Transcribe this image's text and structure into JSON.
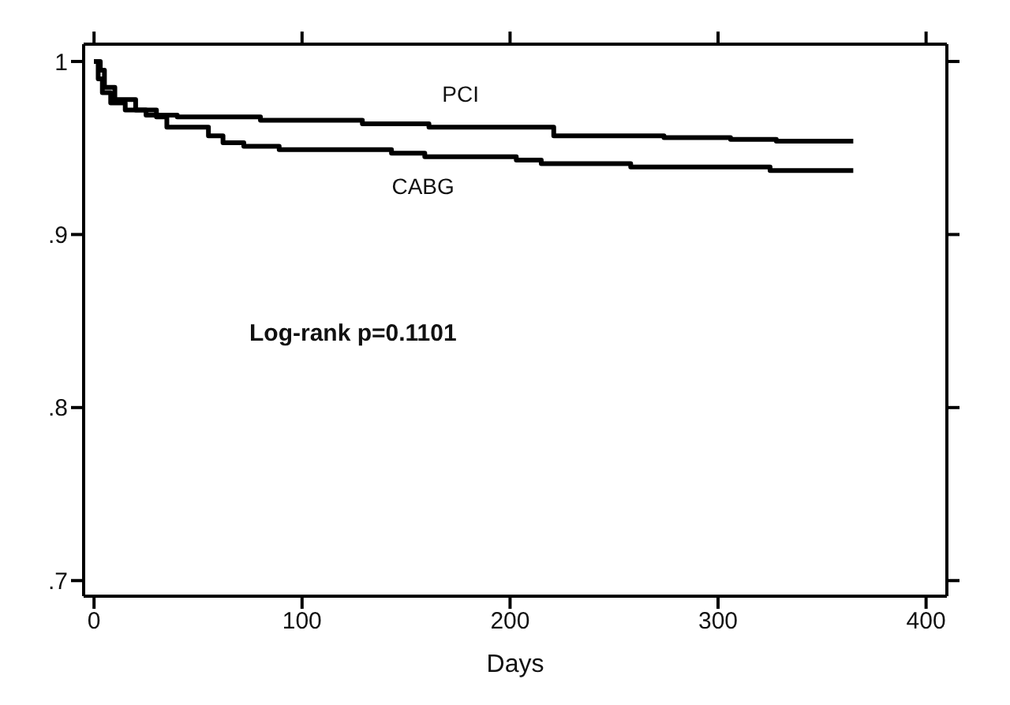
{
  "chart_data": {
    "type": "step",
    "xlabel": "Days",
    "annotations": [
      "Log-rank p=0.1101"
    ],
    "series": [
      {
        "name": "PCI",
        "color": "#000000",
        "x": [
          0,
          2,
          4,
          8,
          15,
          25,
          40,
          80,
          129,
          161,
          221,
          274,
          306,
          328,
          365
        ],
        "values": [
          1,
          0.99,
          0.982,
          0.976,
          0.972,
          0.969,
          0.968,
          0.966,
          0.964,
          0.962,
          0.957,
          0.956,
          0.955,
          0.954,
          0.954
        ]
      },
      {
        "name": "CABG",
        "color": "#000000",
        "x": [
          0,
          3,
          5,
          10,
          20,
          30,
          35,
          55,
          62,
          72,
          89,
          143,
          159,
          203,
          215,
          258,
          325,
          365
        ],
        "values": [
          1,
          0.995,
          0.985,
          0.978,
          0.972,
          0.968,
          0.962,
          0.957,
          0.953,
          0.951,
          0.949,
          0.947,
          0.945,
          0.943,
          0.941,
          0.939,
          0.937,
          0.937
        ]
      }
    ],
    "xlim": [
      -5,
      410
    ],
    "xticks": [
      0,
      100,
      200,
      300,
      400
    ],
    "ylim": [
      0.691,
      1.01
    ],
    "yticks": [
      {
        "value": 0.7,
        "label": ".7"
      },
      {
        "value": 0.8,
        "label": ".8"
      },
      {
        "value": 0.9,
        "label": ".9"
      },
      1
    ],
    "legend": false,
    "marker": "none",
    "line_style": "solid"
  }
}
